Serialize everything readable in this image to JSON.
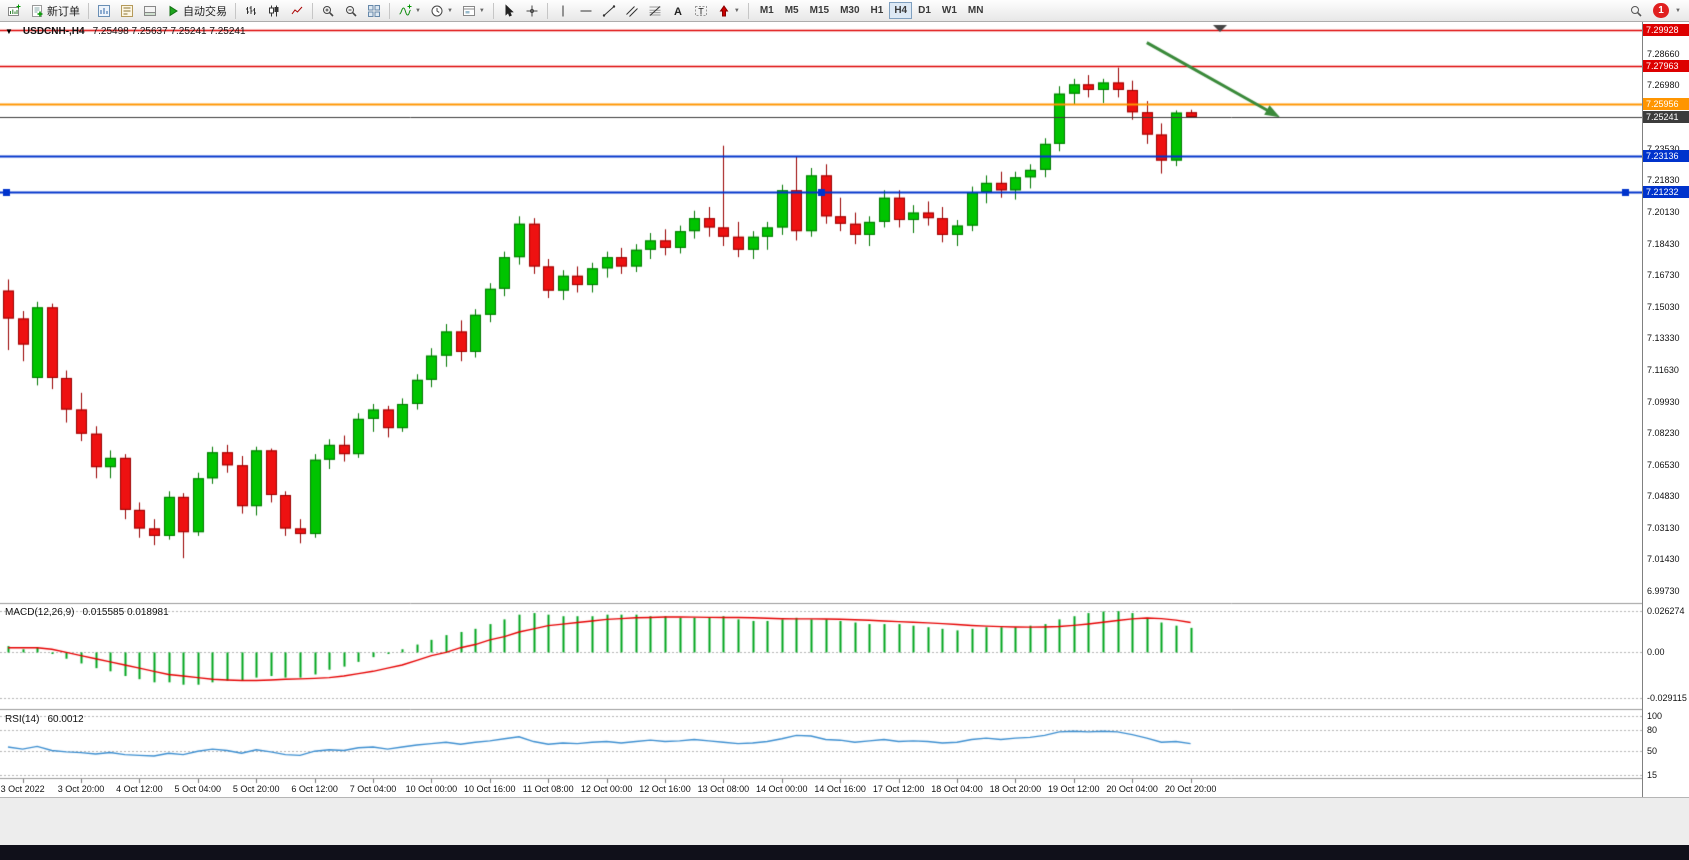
{
  "toolbar": {
    "new_order_label": "新订单",
    "autotrading_label": "自动交易",
    "timeframes": [
      "M1",
      "M5",
      "M15",
      "M30",
      "H1",
      "H4",
      "D1",
      "W1",
      "MN"
    ],
    "active_timeframe": "H4",
    "notification_count": "1"
  },
  "ui_colors": {
    "notification_badge": "#e02020",
    "active_timeframe_bg": "#dde9f5"
  },
  "chart_data": {
    "type": "candlestick",
    "title": "USDCNH-,H4",
    "quote": "7.25498 7.25637 7.25241 7.25241",
    "ylim": [
      6.9925,
      7.3025
    ],
    "colors": {
      "up": "#00c400",
      "down": "#ee1111",
      "up_edge": "#007700",
      "down_edge": "#990000",
      "macd_hist": "#00a51e",
      "macd_signal": "#e60000",
      "rsi_line": "#3d8fd1",
      "arrow": "#3a8a3a"
    },
    "candles": [
      [
        7.159,
        7.165,
        7.127,
        7.144
      ],
      [
        7.144,
        7.148,
        7.121,
        7.13
      ],
      [
        7.112,
        7.153,
        7.108,
        7.15
      ],
      [
        7.15,
        7.152,
        7.106,
        7.112
      ],
      [
        7.112,
        7.116,
        7.088,
        7.095
      ],
      [
        7.095,
        7.104,
        7.078,
        7.082
      ],
      [
        7.082,
        7.086,
        7.058,
        7.064
      ],
      [
        7.064,
        7.073,
        7.058,
        7.069
      ],
      [
        7.069,
        7.071,
        7.036,
        7.041
      ],
      [
        7.041,
        7.045,
        7.026,
        7.031
      ],
      [
        7.031,
        7.036,
        7.022,
        7.027
      ],
      [
        7.027,
        7.051,
        7.025,
        7.048
      ],
      [
        7.048,
        7.05,
        7.015,
        7.029
      ],
      [
        7.029,
        7.061,
        7.027,
        7.058
      ],
      [
        7.058,
        7.075,
        7.055,
        7.072
      ],
      [
        7.072,
        7.076,
        7.061,
        7.065
      ],
      [
        7.065,
        7.07,
        7.039,
        7.043
      ],
      [
        7.043,
        7.075,
        7.038,
        7.073
      ],
      [
        7.073,
        7.074,
        7.045,
        7.049
      ],
      [
        7.049,
        7.051,
        7.027,
        7.031
      ],
      [
        7.031,
        7.036,
        7.023,
        7.028
      ],
      [
        7.028,
        7.071,
        7.026,
        7.068
      ],
      [
        7.068,
        7.079,
        7.063,
        7.076
      ],
      [
        7.076,
        7.081,
        7.067,
        7.071
      ],
      [
        7.071,
        7.093,
        7.069,
        7.09
      ],
      [
        7.09,
        7.098,
        7.083,
        7.095
      ],
      [
        7.095,
        7.097,
        7.08,
        7.085
      ],
      [
        7.085,
        7.101,
        7.083,
        7.098
      ],
      [
        7.098,
        7.114,
        7.095,
        7.111
      ],
      [
        7.111,
        7.128,
        7.107,
        7.124
      ],
      [
        7.124,
        7.141,
        7.118,
        7.137
      ],
      [
        7.137,
        7.143,
        7.121,
        7.126
      ],
      [
        7.126,
        7.149,
        7.123,
        7.146
      ],
      [
        7.146,
        7.163,
        7.142,
        7.16
      ],
      [
        7.16,
        7.18,
        7.156,
        7.177
      ],
      [
        7.177,
        7.199,
        7.173,
        7.195
      ],
      [
        7.195,
        7.198,
        7.168,
        7.172
      ],
      [
        7.172,
        7.176,
        7.155,
        7.159
      ],
      [
        7.159,
        7.17,
        7.154,
        7.167
      ],
      [
        7.167,
        7.172,
        7.158,
        7.162
      ],
      [
        7.162,
        7.174,
        7.158,
        7.171
      ],
      [
        7.171,
        7.18,
        7.166,
        7.177
      ],
      [
        7.177,
        7.182,
        7.168,
        7.172
      ],
      [
        7.172,
        7.184,
        7.169,
        7.181
      ],
      [
        7.181,
        7.19,
        7.176,
        7.186
      ],
      [
        7.186,
        7.192,
        7.178,
        7.182
      ],
      [
        7.182,
        7.194,
        7.179,
        7.191
      ],
      [
        7.191,
        7.202,
        7.187,
        7.198
      ],
      [
        7.198,
        7.204,
        7.188,
        7.193
      ],
      [
        7.193,
        7.237,
        7.183,
        7.188
      ],
      [
        7.188,
        7.196,
        7.177,
        7.181
      ],
      [
        7.181,
        7.191,
        7.176,
        7.188
      ],
      [
        7.188,
        7.196,
        7.181,
        7.193
      ],
      [
        7.193,
        7.216,
        7.189,
        7.213
      ],
      [
        7.213,
        7.231,
        7.186,
        7.191
      ],
      [
        7.191,
        7.225,
        7.188,
        7.221
      ],
      [
        7.221,
        7.227,
        7.195,
        7.199
      ],
      [
        7.199,
        7.209,
        7.191,
        7.195
      ],
      [
        7.195,
        7.201,
        7.184,
        7.189
      ],
      [
        7.189,
        7.199,
        7.183,
        7.196
      ],
      [
        7.196,
        7.213,
        7.193,
        7.209
      ],
      [
        7.209,
        7.213,
        7.193,
        7.197
      ],
      [
        7.197,
        7.205,
        7.19,
        7.201
      ],
      [
        7.201,
        7.207,
        7.194,
        7.198
      ],
      [
        7.198,
        7.204,
        7.185,
        7.189
      ],
      [
        7.189,
        7.197,
        7.183,
        7.194
      ],
      [
        7.194,
        7.215,
        7.191,
        7.212
      ],
      [
        7.212,
        7.221,
        7.206,
        7.217
      ],
      [
        7.217,
        7.223,
        7.209,
        7.213
      ],
      [
        7.213,
        7.223,
        7.208,
        7.22
      ],
      [
        7.22,
        7.227,
        7.214,
        7.224
      ],
      [
        7.224,
        7.241,
        7.22,
        7.238
      ],
      [
        7.238,
        7.269,
        7.234,
        7.265
      ],
      [
        7.265,
        7.273,
        7.259,
        7.27
      ],
      [
        7.27,
        7.275,
        7.263,
        7.267
      ],
      [
        7.267,
        7.273,
        7.26,
        7.271
      ],
      [
        7.271,
        7.279,
        7.263,
        7.267
      ],
      [
        7.267,
        7.272,
        7.251,
        7.255
      ],
      [
        7.255,
        7.261,
        7.238,
        7.243
      ],
      [
        7.243,
        7.249,
        7.222,
        7.229
      ],
      [
        7.229,
        7.256,
        7.226,
        7.2548
      ],
      [
        7.25498,
        7.25637,
        7.25241,
        7.25241
      ]
    ],
    "time_labels": [
      "3 Oct 2022",
      "3 Oct 20:00",
      "4 Oct 12:00",
      "5 Oct 04:00",
      "5 Oct 20:00",
      "6 Oct 12:00",
      "7 Oct 04:00",
      "10 Oct 00:00",
      "10 Oct 16:00",
      "11 Oct 08:00",
      "12 Oct 00:00",
      "12 Oct 16:00",
      "13 Oct 08:00",
      "14 Oct 00:00",
      "14 Oct 16:00",
      "17 Oct 12:00",
      "18 Oct 04:00",
      "18 Oct 20:00",
      "19 Oct 12:00",
      "20 Oct 04:00",
      "20 Oct 20:00"
    ],
    "price_axis_labels": [
      "7.28660",
      "7.26980",
      "7.23530",
      "7.21830",
      "7.20130",
      "7.18430",
      "7.16730",
      "7.15030",
      "7.13330",
      "7.11630",
      "7.09930",
      "7.08230",
      "7.06530",
      "7.04830",
      "7.03130",
      "7.01430",
      "6.99730"
    ],
    "hlines": [
      {
        "price": 7.29928,
        "label": "7.29928",
        "color": "#dd0000",
        "width": 1.4
      },
      {
        "price": 7.27963,
        "label": "7.27963",
        "color": "#dd0000",
        "width": 1.6
      },
      {
        "price": 7.25956,
        "label": "7.25956",
        "color": "#ff9500",
        "width": 2
      },
      {
        "price": 7.25241,
        "label": "7.25241",
        "color": "#3c3c3c",
        "width": 1,
        "is_current_price": true
      },
      {
        "price": 7.23136,
        "label": "7.23136",
        "color": "#0033cc",
        "width": 1.8
      },
      {
        "price": 7.21232,
        "label": "7.21232",
        "color": "#0033cc",
        "width": 1.8,
        "selected": true
      }
    ],
    "trend_arrow": {
      "from_index": 78,
      "from_price": 7.2925,
      "to_index": 87,
      "to_price": 7.2528
    },
    "macd": {
      "label": "MACD(12,26,9)",
      "values_label": "0.015585 0.018981",
      "ylim": [
        -0.0315,
        0.0295
      ],
      "axis_labels": [
        {
          "value": 0.026274,
          "text": "0.026274"
        },
        {
          "value": 0,
          "text": "0.00"
        },
        {
          "value": -0.029115,
          "text": "-0.029115"
        }
      ],
      "histogram": [
        0.004,
        0.002,
        0.003,
        -0.001,
        -0.004,
        -0.007,
        -0.01,
        -0.012,
        -0.015,
        -0.017,
        -0.019,
        -0.019,
        -0.0205,
        -0.0205,
        -0.019,
        -0.018,
        -0.018,
        -0.016,
        -0.015,
        -0.016,
        -0.016,
        -0.014,
        -0.011,
        -0.009,
        -0.006,
        -0.003,
        -0.001,
        0.002,
        0.005,
        0.008,
        0.011,
        0.013,
        0.015,
        0.018,
        0.021,
        0.024,
        0.025,
        0.024,
        0.023,
        0.023,
        0.023,
        0.024,
        0.024,
        0.024,
        0.023,
        0.023,
        0.022,
        0.022,
        0.022,
        0.023,
        0.021,
        0.02,
        0.02,
        0.021,
        0.022,
        0.021,
        0.021,
        0.02,
        0.019,
        0.018,
        0.018,
        0.018,
        0.017,
        0.016,
        0.015,
        0.014,
        0.015,
        0.016,
        0.016,
        0.016,
        0.017,
        0.018,
        0.021,
        0.023,
        0.025,
        0.026,
        0.0262,
        0.025,
        0.022,
        0.019,
        0.017,
        0.0156
      ],
      "signal": [
        0.003,
        0.003,
        0.003,
        0.002,
        0.0,
        -0.002,
        -0.004,
        -0.006,
        -0.008,
        -0.01,
        -0.012,
        -0.014,
        -0.015,
        -0.016,
        -0.017,
        -0.0175,
        -0.0178,
        -0.0178,
        -0.0175,
        -0.017,
        -0.0168,
        -0.0165,
        -0.016,
        -0.015,
        -0.0135,
        -0.012,
        -0.01,
        -0.008,
        -0.005,
        -0.002,
        0.0,
        0.003,
        0.005,
        0.008,
        0.01,
        0.013,
        0.015,
        0.017,
        0.018,
        0.019,
        0.02,
        0.021,
        0.0215,
        0.022,
        0.0222,
        0.0225,
        0.0225,
        0.0224,
        0.0223,
        0.0222,
        0.0222,
        0.022,
        0.0217,
        0.0214,
        0.0213,
        0.0213,
        0.0212,
        0.0211,
        0.0208,
        0.0204,
        0.02,
        0.0196,
        0.0192,
        0.0188,
        0.0183,
        0.0177,
        0.0171,
        0.0167,
        0.0164,
        0.0162,
        0.0161,
        0.0162,
        0.0165,
        0.0172,
        0.0181,
        0.0192,
        0.0203,
        0.0213,
        0.0219,
        0.0215,
        0.0205,
        0.019
      ]
    },
    "rsi": {
      "label": "RSI(14)",
      "value_label": "60.0012",
      "ylim": [
        13,
        103
      ],
      "levels": [
        100,
        80,
        50,
        15
      ],
      "axis_labels": [
        "100",
        "80",
        "50",
        "15"
      ],
      "values": [
        55,
        52,
        56,
        50,
        48,
        47,
        45,
        47,
        44,
        43,
        42,
        46,
        44,
        49,
        52,
        50,
        46,
        51,
        48,
        44,
        43,
        49,
        51,
        50,
        54,
        55,
        52,
        55,
        58,
        60,
        62,
        59,
        62,
        64,
        67,
        70,
        63,
        59,
        61,
        60,
        62,
        63,
        61,
        63,
        65,
        63,
        64,
        66,
        64,
        62,
        60,
        61,
        63,
        67,
        72,
        71,
        66,
        65,
        62,
        64,
        66,
        63,
        64,
        63,
        61,
        62,
        66,
        68,
        66,
        68,
        69,
        72,
        77,
        78,
        77,
        78,
        77,
        73,
        68,
        62,
        63,
        60
      ]
    }
  }
}
